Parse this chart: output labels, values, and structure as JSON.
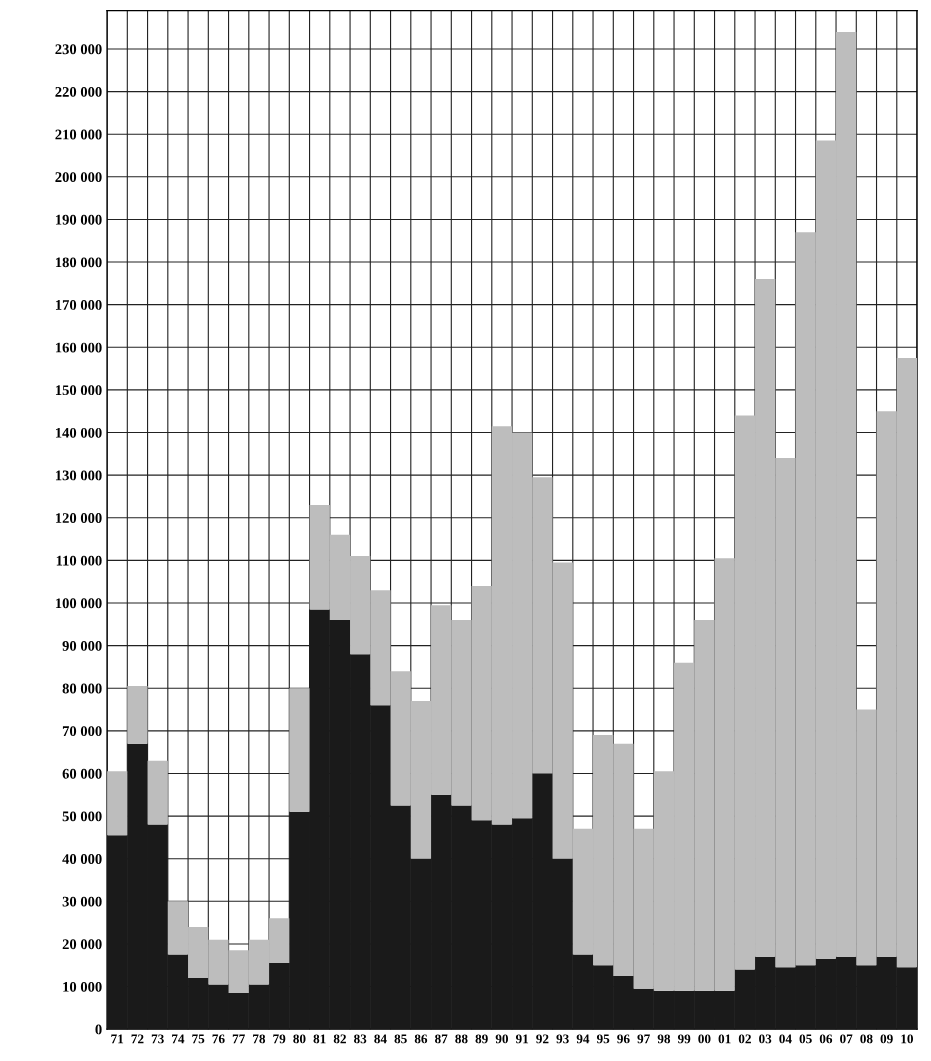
{
  "chart_data": {
    "type": "bar",
    "stacked": true,
    "grid": true,
    "categories": [
      "71",
      "72",
      "73",
      "74",
      "75",
      "76",
      "77",
      "78",
      "79",
      "80",
      "81",
      "82",
      "83",
      "84",
      "85",
      "86",
      "87",
      "88",
      "89",
      "90",
      "91",
      "92",
      "93",
      "94",
      "95",
      "96",
      "97",
      "98",
      "99",
      "00",
      "01",
      "02",
      "03",
      "04",
      "05",
      "06",
      "07",
      "08",
      "09",
      "10"
    ],
    "series": [
      {
        "color": "#1a1a1a",
        "values": [
          45500,
          67000,
          48000,
          17500,
          12000,
          10500,
          8500,
          10500,
          15500,
          51000,
          98500,
          96000,
          88000,
          76000,
          52500,
          40000,
          55000,
          52500,
          49000,
          48000,
          49500,
          60000,
          40000,
          17500,
          15000,
          12500,
          9500,
          9000,
          9000,
          9000,
          9000,
          14000,
          17000,
          14500,
          15000,
          16500,
          17000,
          15000,
          17000,
          14500
        ]
      },
      {
        "color": "#bdbdbd",
        "values": [
          15000,
          13500,
          15000,
          12500,
          12000,
          10500,
          10000,
          10500,
          10500,
          29000,
          24500,
          20000,
          23000,
          27000,
          31500,
          37000,
          44500,
          43500,
          55000,
          93500,
          90500,
          69500,
          69500,
          29500,
          54000,
          54500,
          37500,
          51500,
          77000,
          87000,
          101500,
          130000,
          159000,
          119500,
          172000,
          192000,
          217000,
          60000,
          128000,
          143000
        ]
      }
    ],
    "ylim": [
      0,
      239000
    ],
    "yticks": [
      {
        "value": 0,
        "label": "0"
      },
      {
        "value": 10000,
        "label": "10 000"
      },
      {
        "value": 20000,
        "label": "20 000"
      },
      {
        "value": 30000,
        "label": "30 000"
      },
      {
        "value": 40000,
        "label": "40 000"
      },
      {
        "value": 50000,
        "label": "50 000"
      },
      {
        "value": 60000,
        "label": "60 000"
      },
      {
        "value": 70000,
        "label": "70 000"
      },
      {
        "value": 80000,
        "label": "80 000"
      },
      {
        "value": 90000,
        "label": "90 000"
      },
      {
        "value": 100000,
        "label": "100 000"
      },
      {
        "value": 110000,
        "label": "110 000"
      },
      {
        "value": 120000,
        "label": "120 000"
      },
      {
        "value": 130000,
        "label": "130 000"
      },
      {
        "value": 140000,
        "label": "140 000"
      },
      {
        "value": 150000,
        "label": "150 000"
      },
      {
        "value": 160000,
        "label": "160 000"
      },
      {
        "value": 170000,
        "label": "170 000"
      },
      {
        "value": 180000,
        "label": "180 000"
      },
      {
        "value": 190000,
        "label": "190 000"
      },
      {
        "value": 200000,
        "label": "200 000"
      },
      {
        "value": 210000,
        "label": "210 000"
      },
      {
        "value": 220000,
        "label": "220 000"
      },
      {
        "value": 230000,
        "label": "230 000"
      }
    ]
  }
}
